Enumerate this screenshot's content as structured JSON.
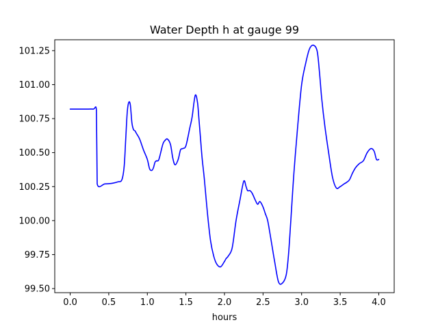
{
  "chart_data": {
    "type": "line",
    "title": "Water Depth h at gauge 99",
    "xlabel": "hours",
    "ylabel": "",
    "xlim": [
      -0.2,
      4.2
    ],
    "ylim": [
      99.47,
      101.33
    ],
    "xticks": [
      0.0,
      0.5,
      1.0,
      1.5,
      2.0,
      2.5,
      3.0,
      3.5,
      4.0
    ],
    "xtick_labels": [
      "0.0",
      "0.5",
      "1.0",
      "1.5",
      "2.0",
      "2.5",
      "3.0",
      "3.5",
      "4.0"
    ],
    "yticks": [
      99.5,
      99.75,
      100.0,
      100.25,
      100.5,
      100.75,
      101.0,
      101.25
    ],
    "ytick_labels": [
      "99.50",
      "99.75",
      "100.00",
      "100.25",
      "100.50",
      "100.75",
      "101.00",
      "101.25"
    ],
    "grid": false,
    "series": [
      {
        "name": "",
        "color": "#0000ff",
        "x": [
          0.0,
          0.1,
          0.2,
          0.3,
          0.34,
          0.345,
          0.35,
          0.45,
          0.55,
          0.62,
          0.67,
          0.7,
          0.72,
          0.74,
          0.76,
          0.78,
          0.8,
          0.82,
          0.84,
          0.86,
          0.9,
          0.95,
          1.0,
          1.03,
          1.06,
          1.08,
          1.1,
          1.12,
          1.15,
          1.2,
          1.23,
          1.26,
          1.3,
          1.33,
          1.36,
          1.4,
          1.43,
          1.46,
          1.5,
          1.55,
          1.58,
          1.62,
          1.65,
          1.67,
          1.69,
          1.71,
          1.74,
          1.78,
          1.82,
          1.86,
          1.9,
          1.95,
          2.0,
          2.02,
          2.05,
          2.1,
          2.15,
          2.2,
          2.25,
          2.28,
          2.3,
          2.33,
          2.36,
          2.4,
          2.43,
          2.46,
          2.5,
          2.53,
          2.56,
          2.6,
          2.65,
          2.7,
          2.75,
          2.8,
          2.83,
          2.86,
          2.9,
          2.95,
          3.0,
          3.05,
          3.1,
          3.15,
          3.2,
          3.23,
          3.26,
          3.3,
          3.35,
          3.4,
          3.45,
          3.5,
          3.55,
          3.58,
          3.62,
          3.66,
          3.7,
          3.75,
          3.8,
          3.85,
          3.9,
          3.94,
          3.97,
          4.0
        ],
        "y": [
          100.82,
          100.82,
          100.82,
          100.82,
          100.815,
          100.55,
          100.27,
          100.27,
          100.275,
          100.285,
          100.3,
          100.4,
          100.6,
          100.8,
          100.87,
          100.85,
          100.72,
          100.67,
          100.66,
          100.64,
          100.6,
          100.52,
          100.45,
          100.38,
          100.37,
          100.39,
          100.43,
          100.44,
          100.45,
          100.56,
          100.59,
          100.6,
          100.56,
          100.46,
          100.41,
          100.45,
          100.52,
          100.53,
          100.55,
          100.68,
          100.76,
          100.92,
          100.87,
          100.74,
          100.6,
          100.46,
          100.3,
          100.05,
          99.85,
          99.74,
          99.68,
          99.66,
          99.7,
          99.72,
          99.74,
          99.8,
          100.0,
          100.15,
          100.29,
          100.25,
          100.22,
          100.22,
          100.2,
          100.15,
          100.12,
          100.14,
          100.1,
          100.05,
          100.0,
          99.87,
          99.7,
          99.55,
          99.54,
          99.6,
          99.75,
          100.0,
          100.35,
          100.7,
          101.0,
          101.15,
          101.26,
          101.29,
          101.25,
          101.1,
          100.9,
          100.7,
          100.5,
          100.32,
          100.24,
          100.25,
          100.27,
          100.28,
          100.3,
          100.35,
          100.39,
          100.42,
          100.44,
          100.5,
          100.53,
          100.51,
          100.45,
          100.45
        ]
      }
    ]
  }
}
